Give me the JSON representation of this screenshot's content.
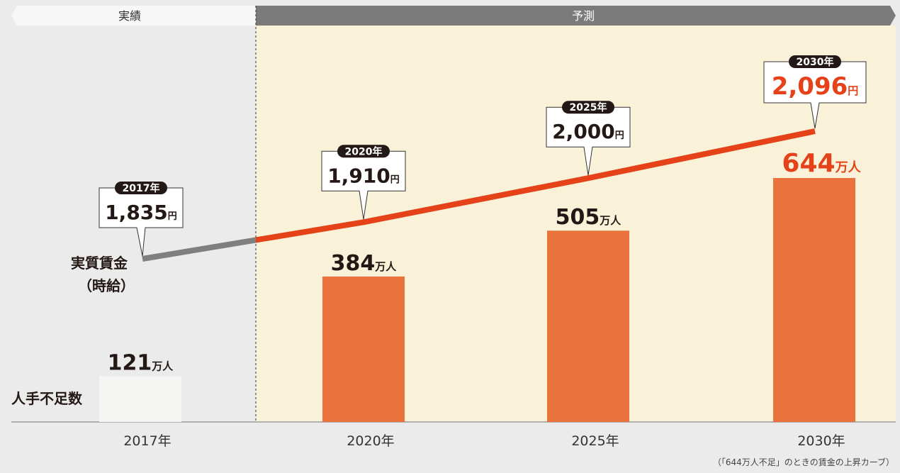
{
  "header": {
    "actual_label": "実績",
    "forecast_label": "予測"
  },
  "chart_data": {
    "type": "bar",
    "categories": [
      "2017年",
      "2020年",
      "2025年",
      "2030年"
    ],
    "actual_categories": [
      "2017年"
    ],
    "forecast_categories": [
      "2020年",
      "2025年",
      "2030年"
    ],
    "series": [
      {
        "name": "人手不足数",
        "values": [
          121,
          384,
          505,
          644
        ],
        "value_labels": [
          "121",
          "384",
          "505",
          "644"
        ],
        "unit": "万人",
        "colors": [
          "#f5f5f3",
          "#ea723d",
          "#ea723d",
          "#ea723d"
        ]
      },
      {
        "name": "実質賃金（時給）",
        "name_lines": [
          "実質賃金",
          "（時給）"
        ],
        "type": "line",
        "values": [
          1835,
          1910,
          2000,
          2096
        ],
        "value_labels": [
          "1,835",
          "1,910",
          "2,000",
          "2,096"
        ],
        "year_tags": [
          "2017年",
          "2020年",
          "2025年",
          "2030年"
        ],
        "unit": "円",
        "actual_color": "#7f7f7f",
        "forecast_color": "#e5421a"
      }
    ],
    "annotation": "（「644万人不足」のときの賃金の上昇カーブ）",
    "bar_ylim": [
      0,
      800
    ],
    "line_ylim": [
      1600,
      2250
    ],
    "grid": false,
    "colors": {
      "forecast_bg": "#faf2d8",
      "header_dark": "#7b7b7b",
      "highlight_text": "#e5421a",
      "text": "#231815",
      "tag_bg": "#231815"
    }
  }
}
